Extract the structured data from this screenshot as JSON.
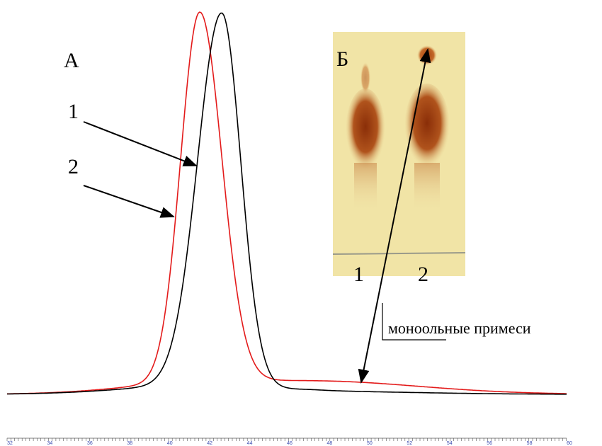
{
  "panel_a": {
    "label": "А",
    "curve_labels": [
      "1",
      "2"
    ]
  },
  "panel_b": {
    "label": "Б",
    "lane_labels": [
      "1",
      "2"
    ]
  },
  "annotation": "моноольные примеси",
  "axis": {
    "labels": [
      "32",
      "34",
      "36",
      "38",
      "40",
      "42",
      "44",
      "46",
      "48",
      "50",
      "52",
      "54",
      "56",
      "58",
      "60"
    ]
  }
}
